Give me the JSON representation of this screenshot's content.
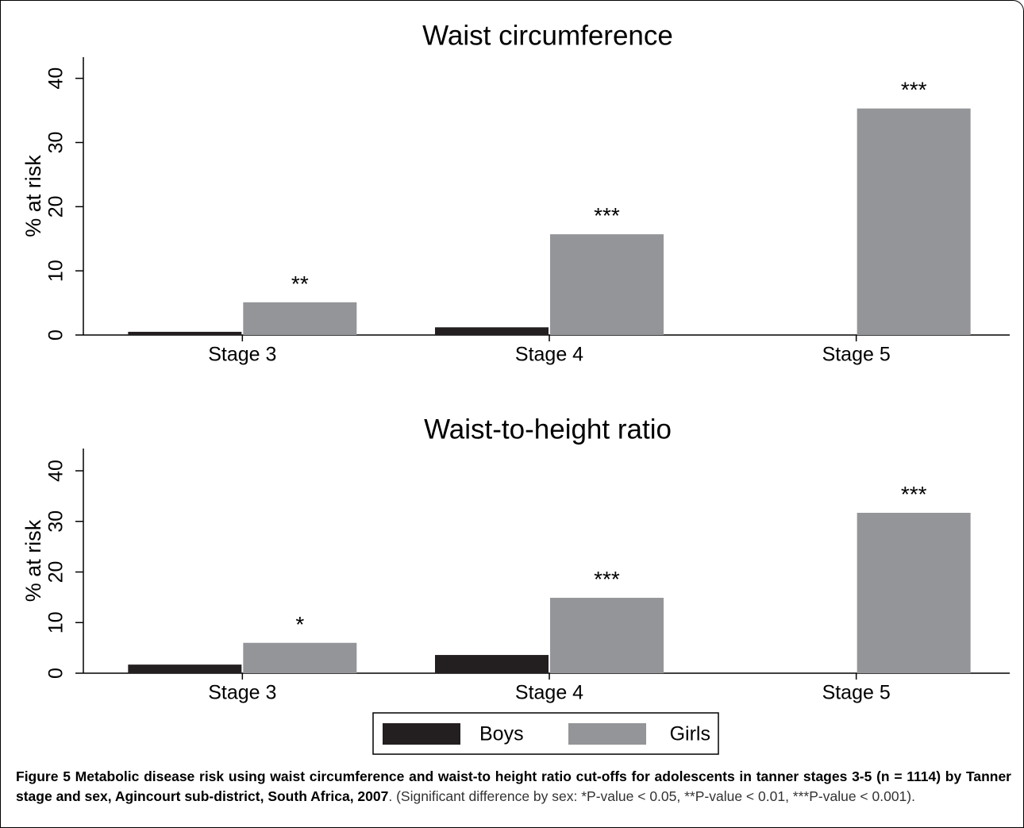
{
  "chart_data": [
    {
      "type": "bar",
      "title": "Waist circumference",
      "y_label": "% at risk",
      "categories": [
        "Stage 3",
        "Stage 4",
        "Stage 5"
      ],
      "series": [
        {
          "color": "#231f20",
          "values": [
            0.5,
            1.2,
            0
          ]
        },
        {
          "color": "#939598",
          "values": [
            5.1,
            15.7,
            35.3
          ],
          "annotations": [
            "**",
            "***",
            "***"
          ]
        }
      ],
      "ylim": [
        0,
        43.3
      ],
      "yticks": [
        0,
        10,
        20,
        30,
        40
      ]
    },
    {
      "type": "bar",
      "title": "Waist-to-height ratio",
      "y_label": "% at risk",
      "categories": [
        "Stage 3",
        "Stage 4",
        "Stage 5"
      ],
      "series": [
        {
          "name": "Boys",
          "color": "#231f20",
          "values": [
            1.7,
            3.6,
            0
          ]
        },
        {
          "name": "Girls",
          "color": "#939598",
          "values": [
            6.0,
            14.9,
            31.7
          ],
          "annotations": [
            "*",
            "***",
            "***"
          ]
        }
      ],
      "ylim": [
        0,
        44.4
      ],
      "yticks": [
        0,
        10,
        20,
        30,
        40
      ],
      "legend": "bottom"
    }
  ],
  "caption": {
    "bold": "Figure 5 Metabolic disease risk using waist circumference and waist-to height ratio cut-offs for adolescents in tanner stages 3-5 (n = 1114) by Tanner stage and sex, Agincourt sub-district, South Africa, 2007",
    "text": ". (Significant difference by sex: *P-value < 0.05, **P-value < 0.01, ***P-value < 0.001)."
  }
}
